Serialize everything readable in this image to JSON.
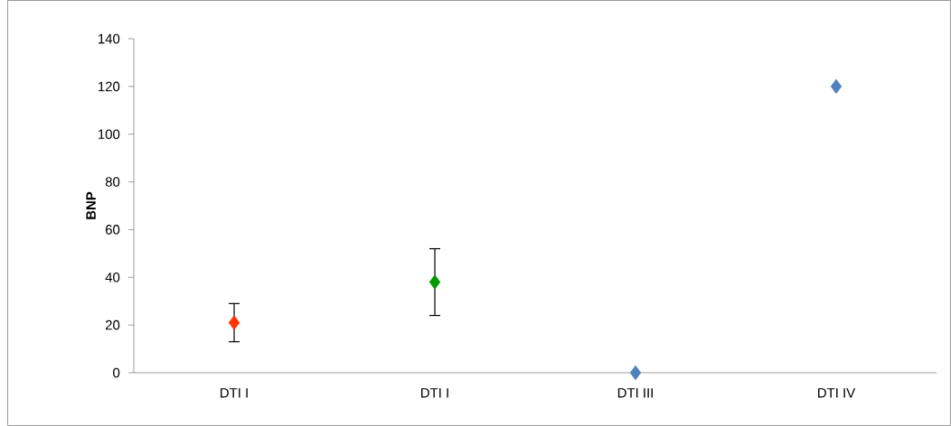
{
  "chart_data": {
    "type": "scatter",
    "ylabel": "BNP",
    "categories": [
      "DTI I",
      "DTI I",
      "DTI III",
      "DTI IV"
    ],
    "values": [
      21,
      38,
      0,
      120
    ],
    "errors": [
      8,
      14,
      null,
      null
    ],
    "colors": [
      "#ff3300",
      "#009900",
      "#4f81bd",
      "#4f81bd"
    ],
    "marker": "diamond",
    "ylim": [
      0,
      140
    ],
    "yticks": [
      0,
      20,
      40,
      60,
      80,
      100,
      120,
      140
    ],
    "grid": false
  }
}
